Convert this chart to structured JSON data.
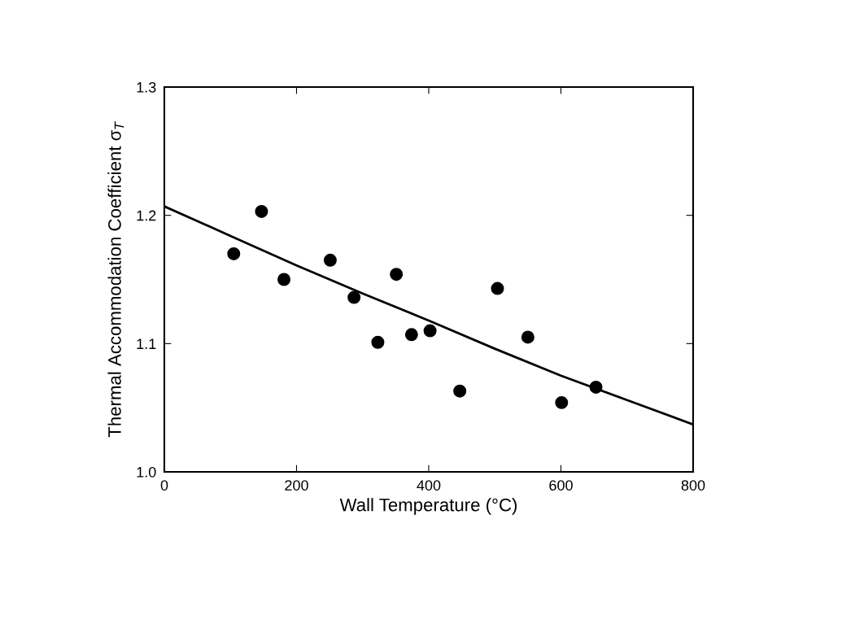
{
  "chart_data": {
    "type": "scatter",
    "xlabel": "Wall Temperature (°C)",
    "ylabel": "Thermal Accommodation Coefficient σ$_{T}$",
    "xlim": [
      0,
      800
    ],
    "xticks": [
      0,
      200,
      400,
      600,
      800
    ],
    "ylim": [
      1.0,
      1.3
    ],
    "yticks": [
      {
        "value": 1.0,
        "label": "1.0"
      },
      1.1,
      1.2,
      1.3
    ],
    "grid": false,
    "legend": false,
    "series": [
      {
        "color": "#000000",
        "marker": "circle",
        "x": [
          105,
          147,
          181,
          251,
          287,
          323,
          351,
          374,
          402,
          447,
          504,
          550,
          601,
          653
        ],
        "values": [
          1.17,
          1.203,
          1.15,
          1.165,
          1.136,
          1.101,
          1.154,
          1.107,
          1.11,
          1.063,
          1.143,
          1.105,
          1.054,
          1.066
        ]
      },
      {
        "type": "line",
        "color": "#000000",
        "marker": "none",
        "line_style": "solid",
        "x": [
          0,
          100,
          200,
          300,
          400,
          500,
          600,
          700,
          800
        ],
        "values": [
          1.207,
          1.184,
          1.161,
          1.139,
          1.118,
          1.096,
          1.075,
          1.056,
          1.037
        ]
      }
    ]
  }
}
